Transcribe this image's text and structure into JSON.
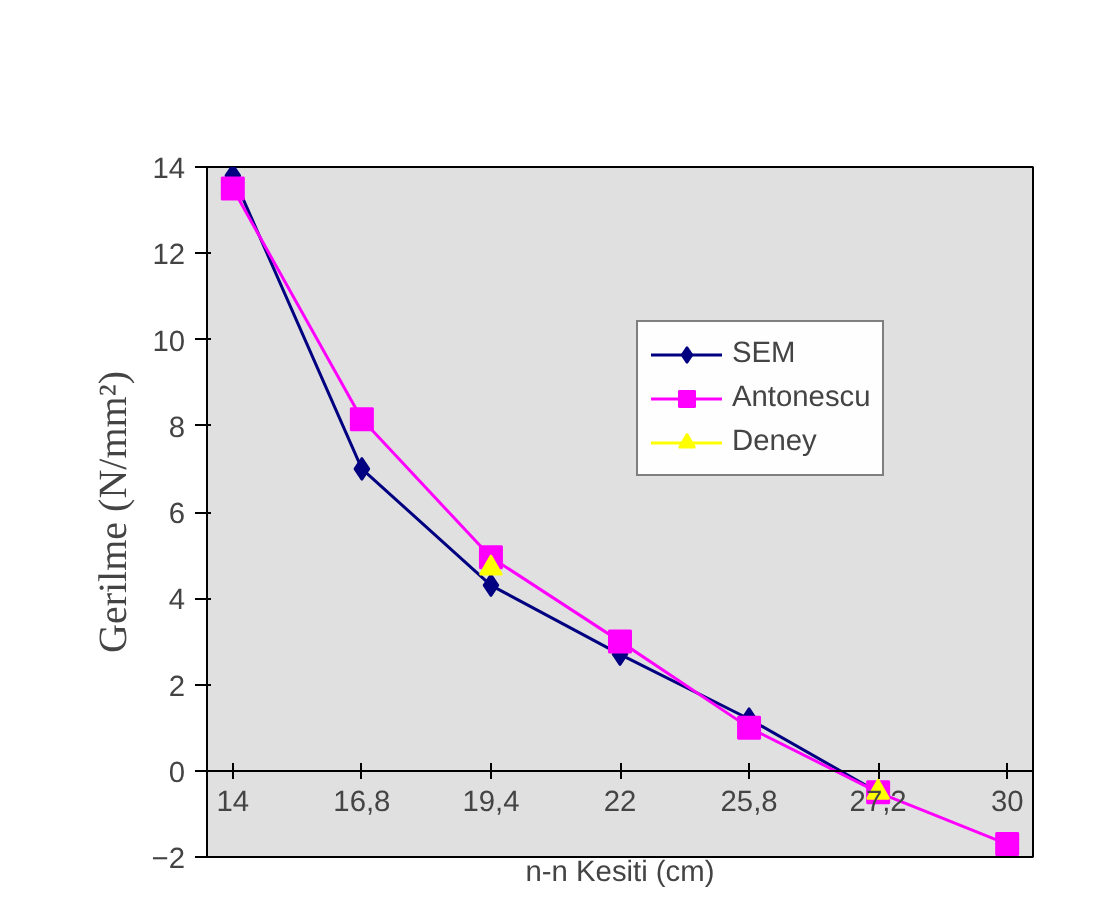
{
  "chart_data": {
    "type": "line",
    "xlabel": "n-n Kesiti (cm)",
    "ylabel": "Gerilme (N/mm²)",
    "categories": [
      "14",
      "16,8",
      "19,4",
      "22",
      "25,8",
      "27,2",
      "30"
    ],
    "ylim": [
      -2,
      14
    ],
    "yticks": [
      -2,
      0,
      2,
      4,
      6,
      8,
      10,
      12,
      14
    ],
    "grid": false,
    "legend": "top right",
    "series": [
      {
        "name": "SEM",
        "color": "#000080",
        "marker": "diamond",
        "values": [
          13.8,
          7.0,
          4.3,
          2.7,
          1.2,
          -0.5,
          null
        ]
      },
      {
        "name": "Antonescu",
        "color": "#ff00ff",
        "marker": "square",
        "values": [
          13.5,
          8.15,
          4.95,
          3.0,
          1.0,
          -0.5,
          -1.7
        ]
      },
      {
        "name": "Deney",
        "color": "#ffff00",
        "marker": "triangle",
        "values": [
          null,
          null,
          4.7,
          null,
          null,
          -0.5,
          null
        ]
      }
    ]
  }
}
